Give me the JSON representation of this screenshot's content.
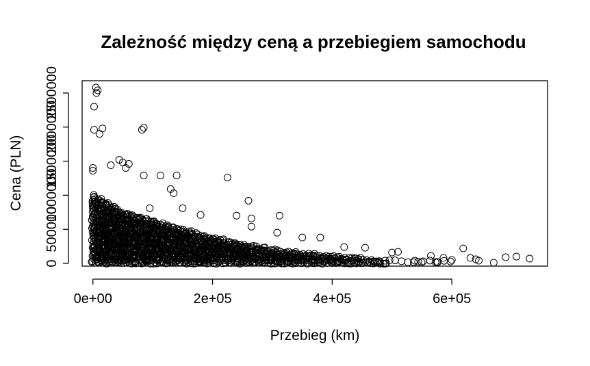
{
  "chart_data": {
    "type": "scatter",
    "title": "Zależność między ceną a przebiegiem samochodu",
    "xlabel": "Przebieg (km)",
    "ylabel": "Cena (PLN)",
    "xlim": [
      -18000,
      760000
    ],
    "ylim": [
      -40000,
      2680000
    ],
    "x_ticks": [
      {
        "value": 0,
        "label": "0e+00"
      },
      {
        "value": 200000,
        "label": "2e+05"
      },
      {
        "value": 400000,
        "label": "4e+05"
      },
      {
        "value": 600000,
        "label": "6e+05"
      }
    ],
    "y_ticks": [
      {
        "value": 0,
        "label": "0"
      },
      {
        "value": 500000,
        "label": "500000"
      },
      {
        "value": 1000000,
        "label": "1000000"
      },
      {
        "value": 1500000,
        "label": "1500000"
      },
      {
        "value": 2000000,
        "label": "2000000"
      },
      {
        "value": 2500000,
        "label": "2500000"
      }
    ],
    "grid": false,
    "legend": "none",
    "points": [
      {
        "x": 5000,
        "y": 2580000
      },
      {
        "x": 8000,
        "y": 2540000
      },
      {
        "x": 6000,
        "y": 2500000
      },
      {
        "x": 2000,
        "y": 2300000
      },
      {
        "x": 16000,
        "y": 1980000
      },
      {
        "x": 2000,
        "y": 1960000
      },
      {
        "x": 11000,
        "y": 1900000
      },
      {
        "x": 82000,
        "y": 1960000
      },
      {
        "x": 85000,
        "y": 1990000
      },
      {
        "x": 44000,
        "y": 1520000
      },
      {
        "x": 50000,
        "y": 1480000
      },
      {
        "x": 60000,
        "y": 1460000
      },
      {
        "x": 30000,
        "y": 1440000
      },
      {
        "x": 55000,
        "y": 1400000
      },
      {
        "x": 0,
        "y": 1400000
      },
      {
        "x": 0,
        "y": 1360000
      },
      {
        "x": 85000,
        "y": 1290000
      },
      {
        "x": 140000,
        "y": 1290000
      },
      {
        "x": 113000,
        "y": 1290000
      },
      {
        "x": 225000,
        "y": 1260000
      },
      {
        "x": 130000,
        "y": 1090000
      },
      {
        "x": 135000,
        "y": 1030000
      },
      {
        "x": 260000,
        "y": 920000
      },
      {
        "x": 312000,
        "y": 700000
      },
      {
        "x": 240000,
        "y": 700000
      },
      {
        "x": 265000,
        "y": 660000
      },
      {
        "x": 180000,
        "y": 710000
      },
      {
        "x": 150000,
        "y": 810000
      },
      {
        "x": 95000,
        "y": 810000
      },
      {
        "x": 265000,
        "y": 540000
      },
      {
        "x": 308000,
        "y": 450000
      },
      {
        "x": 380000,
        "y": 380000
      },
      {
        "x": 350000,
        "y": 380000
      },
      {
        "x": 420000,
        "y": 240000
      },
      {
        "x": 455000,
        "y": 230000
      },
      {
        "x": 500000,
        "y": 160000
      },
      {
        "x": 510000,
        "y": 170000
      },
      {
        "x": 565000,
        "y": 110000
      },
      {
        "x": 586000,
        "y": 80000
      },
      {
        "x": 619000,
        "y": 220000
      },
      {
        "x": 631000,
        "y": 80000
      },
      {
        "x": 640000,
        "y": 60000
      },
      {
        "x": 645000,
        "y": 40000
      },
      {
        "x": 670000,
        "y": 10000
      },
      {
        "x": 690000,
        "y": 90000
      },
      {
        "x": 708000,
        "y": 100000
      },
      {
        "x": 730000,
        "y": 70000
      },
      {
        "x": 600000,
        "y": 50000
      },
      {
        "x": 575000,
        "y": 20000
      },
      {
        "x": 552000,
        "y": 30000
      },
      {
        "x": 538000,
        "y": 40000
      }
    ],
    "density": {
      "note": "dense cloud of overlapping markers",
      "x_step": 4000,
      "y_step": 30000,
      "envelope": [
        {
          "x": 0,
          "y": 1000000
        },
        {
          "x": 50000,
          "y": 760000
        },
        {
          "x": 100000,
          "y": 620000
        },
        {
          "x": 150000,
          "y": 500000
        },
        {
          "x": 200000,
          "y": 380000
        },
        {
          "x": 250000,
          "y": 290000
        },
        {
          "x": 300000,
          "y": 200000
        },
        {
          "x": 350000,
          "y": 150000
        },
        {
          "x": 400000,
          "y": 110000
        },
        {
          "x": 450000,
          "y": 70000
        },
        {
          "x": 480000,
          "y": 40000
        },
        {
          "x": 500000,
          "y": 0
        }
      ]
    }
  }
}
